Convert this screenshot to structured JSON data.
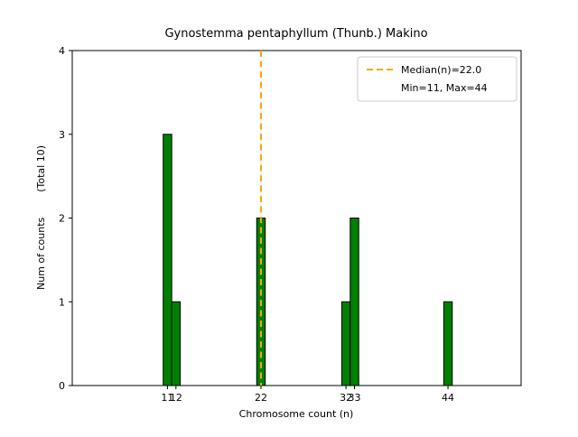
{
  "chart_data": {
    "type": "bar",
    "title": "Gynostemma pentaphyllum (Thunb.) Makino",
    "xlabel": "Chromosome count (n)",
    "ylabel": "Num of counts        (Total 10)",
    "x": [
      11,
      12,
      22,
      32,
      33,
      44
    ],
    "values": [
      3,
      1,
      2,
      1,
      2,
      1
    ],
    "total_counts": 10,
    "bar_width": 1.0,
    "bar_color": "#008000",
    "bar_edge_color": "#000000",
    "xlim": [
      -0.2,
      52.6
    ],
    "ylim": [
      0,
      4
    ],
    "xticks": [
      11,
      12,
      22,
      32,
      33,
      44
    ],
    "yticks": [
      0,
      1,
      2,
      3,
      4
    ],
    "median_line": {
      "x": 22,
      "value_label": "Median(n)=22.0",
      "color": "#ffa500",
      "style": "dashed"
    },
    "legend": {
      "position": "upper right",
      "lines": [
        "Median(n)=22.0",
        "Min=11, Max=44"
      ],
      "border_color": "#cccccc"
    },
    "grid": false
  }
}
